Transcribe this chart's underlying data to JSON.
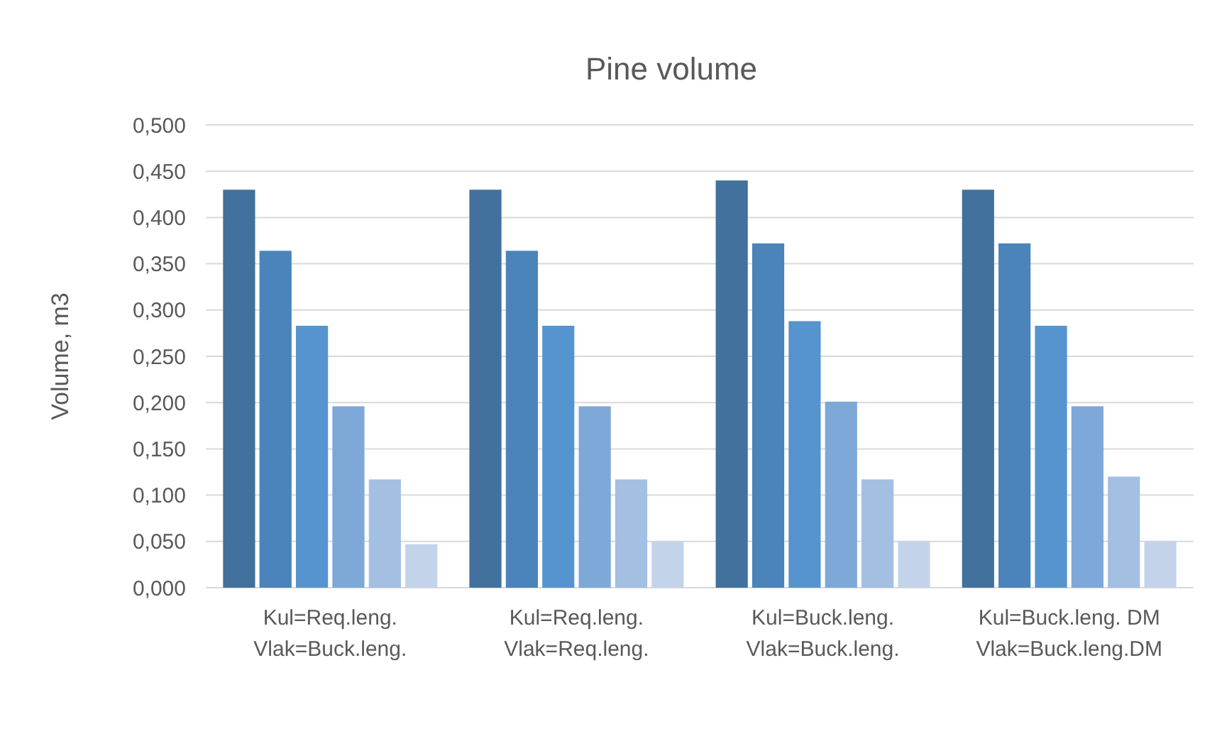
{
  "chart_data": {
    "type": "bar",
    "title": "Pine volume",
    "ylabel": "Volume, m3",
    "categories": [
      "Kul=Req.leng.\nVlak=Buck.leng.",
      "Kul=Req.leng.\nVlak=Req.leng.",
      "Kul=Buck.leng.\nVlak=Buck.leng.",
      "Kul=Buck.leng. DM\nVlak=Buck.leng.DM"
    ],
    "series": [
      {
        "color": "#41719c",
        "values": [
          0.43,
          0.43,
          0.44,
          0.43
        ]
      },
      {
        "color": "#4a84ba",
        "values": [
          0.364,
          0.364,
          0.372,
          0.372
        ]
      },
      {
        "color": "#5694cf",
        "values": [
          0.283,
          0.283,
          0.288,
          0.283
        ]
      },
      {
        "color": "#7da8d8",
        "values": [
          0.196,
          0.196,
          0.201,
          0.196
        ]
      },
      {
        "color": "#a3bfe2",
        "values": [
          0.117,
          0.117,
          0.117,
          0.12
        ]
      },
      {
        "color": "#c3d4ea",
        "values": [
          0.047,
          0.05,
          0.05,
          0.05
        ]
      }
    ],
    "ylim": [
      0,
      0.5
    ],
    "yticks": [
      {
        "value": 0,
        "label": "0,000"
      },
      {
        "value": 0.05,
        "label": "0,050"
      },
      {
        "value": 0.1,
        "label": "0,100"
      },
      {
        "value": 0.15,
        "label": "0,150"
      },
      {
        "value": 0.2,
        "label": "0,200"
      },
      {
        "value": 0.25,
        "label": "0,250"
      },
      {
        "value": 0.3,
        "label": "0,300"
      },
      {
        "value": 0.35,
        "label": "0,350"
      },
      {
        "value": 0.4,
        "label": "0,400"
      },
      {
        "value": 0.45,
        "label": "0,450"
      },
      {
        "value": 0.5,
        "label": "0,500"
      }
    ],
    "grid": true
  }
}
